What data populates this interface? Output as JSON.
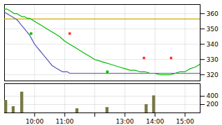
{
  "chart_data": [
    {
      "type": "line",
      "xlim": [
        0,
        390
      ],
      "xticks": [
        {
          "value": 60,
          "label": "10:00"
        },
        {
          "value": 120,
          "label": "11:00"
        },
        {
          "value": 180,
          "label": null
        },
        {
          "value": 240,
          "label": "13:00"
        },
        {
          "value": 300,
          "label": "14:00"
        },
        {
          "value": 360,
          "label": "15:00"
        }
      ],
      "ylim": [
        316,
        366
      ],
      "yticks": [
        320,
        330,
        340,
        350,
        360
      ],
      "grid": true,
      "tick_labels": "y",
      "series": [
        {
          "type": "hline",
          "color": "#ccaa00",
          "values": [
            356.5
          ]
        },
        {
          "type": "line",
          "color": "#00bb00",
          "x": [
            0,
            5,
            10,
            15,
            20,
            25,
            30,
            35,
            40,
            45,
            50,
            55,
            60,
            65,
            70,
            80,
            90,
            100,
            110,
            120,
            130,
            140,
            150,
            160,
            170,
            180,
            190,
            200,
            210,
            220,
            230,
            240,
            250,
            260,
            270,
            280,
            290,
            300,
            310,
            320,
            330,
            340,
            350,
            360,
            365,
            370,
            380,
            385,
            390
          ],
          "values": [
            363,
            363,
            362,
            361,
            360,
            360,
            359,
            358,
            358,
            357,
            357,
            356,
            355,
            354,
            353,
            351,
            349,
            347,
            345,
            342,
            340,
            338,
            336,
            334,
            332,
            330,
            329,
            328,
            327,
            326,
            325,
            324,
            323,
            323,
            322,
            322,
            321,
            321,
            320,
            320,
            320,
            321,
            322,
            322,
            323,
            324,
            325,
            326,
            327
          ]
        },
        {
          "type": "line",
          "color": "#5555bb",
          "x": [
            0,
            5,
            10,
            15,
            20,
            25,
            30,
            35,
            40,
            45,
            50,
            55,
            60,
            65,
            70,
            75,
            80,
            85,
            90,
            95,
            100,
            105,
            110,
            115,
            120,
            125,
            130,
            135,
            140,
            145,
            150,
            155,
            160,
            165,
            170,
            175,
            180,
            185,
            190,
            200,
            210,
            220,
            230,
            240,
            250,
            260,
            270,
            280,
            290,
            300,
            310,
            320,
            330,
            340,
            350,
            360,
            370,
            380,
            390
          ],
          "values": [
            361,
            360,
            359,
            358,
            357,
            356,
            354,
            352,
            350,
            348,
            346,
            343,
            340,
            338,
            336,
            334,
            332,
            330,
            328,
            326,
            325,
            324,
            323,
            322,
            322,
            322,
            321,
            321,
            321,
            321,
            321,
            321,
            321,
            321,
            321,
            321,
            321,
            321,
            321,
            321,
            321,
            321,
            321,
            321,
            321,
            321,
            321,
            321,
            321,
            321,
            321,
            321,
            321,
            321,
            321,
            321,
            321,
            321,
            321
          ]
        },
        {
          "type": "scatter",
          "marker": "square",
          "color": "#ff3333",
          "x": [
            130,
            278,
            332
          ],
          "values": [
            347,
            331,
            331
          ]
        },
        {
          "type": "scatter",
          "marker": "square",
          "color": "#00bb00",
          "x": [
            53,
            205
          ],
          "values": [
            347,
            322
          ]
        }
      ]
    },
    {
      "type": "bar",
      "xlim": [
        0,
        390
      ],
      "xticks": [
        {
          "value": 60,
          "label": "10:00"
        },
        {
          "value": 120,
          "label": "11:00"
        },
        {
          "value": 180,
          "label": null
        },
        {
          "value": 240,
          "label": "13:00"
        },
        {
          "value": 300,
          "label": "14:00"
        },
        {
          "value": 360,
          "label": "15:00"
        }
      ],
      "ylim": [
        0,
        700
      ],
      "yticks": [
        200,
        400
      ],
      "grid": true,
      "x": [
        3,
        18,
        35,
        145,
        205,
        283,
        298
      ],
      "values": [
        300,
        150,
        500,
        100,
        130,
        200,
        410
      ],
      "color": "#777744"
    }
  ]
}
